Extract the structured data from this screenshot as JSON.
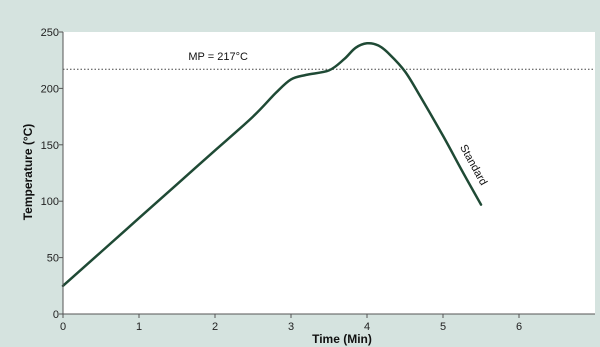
{
  "chart_data": {
    "type": "line",
    "xlabel": "Time (Min)",
    "ylabel": "Temperature (°C)",
    "xlim": [
      0,
      7
    ],
    "ylim": [
      0,
      250
    ],
    "x_ticks": [
      "0",
      "1",
      "2",
      "3",
      "4",
      "5",
      "6"
    ],
    "y_ticks": [
      "0",
      "50",
      "100",
      "150",
      "200",
      "250"
    ],
    "grid": false,
    "series": [
      {
        "name": "Standard",
        "color": "#1f4a35",
        "x": [
          0,
          0.5,
          1.0,
          1.5,
          2.0,
          2.5,
          2.8,
          3.0,
          3.2,
          3.5,
          3.7,
          3.85,
          4.0,
          4.15,
          4.3,
          4.5,
          4.7,
          5.0,
          5.25,
          5.5
        ],
        "y": [
          25,
          55,
          85,
          115,
          145,
          175,
          196,
          208,
          212,
          216,
          226,
          236,
          240,
          238,
          230,
          215,
          193,
          158,
          127,
          97
        ]
      }
    ],
    "reference_line": {
      "y": 217,
      "label": "MP = 217°C",
      "style": "dotted"
    },
    "background": "#d5e3df",
    "plot_background": "#ffffff"
  }
}
